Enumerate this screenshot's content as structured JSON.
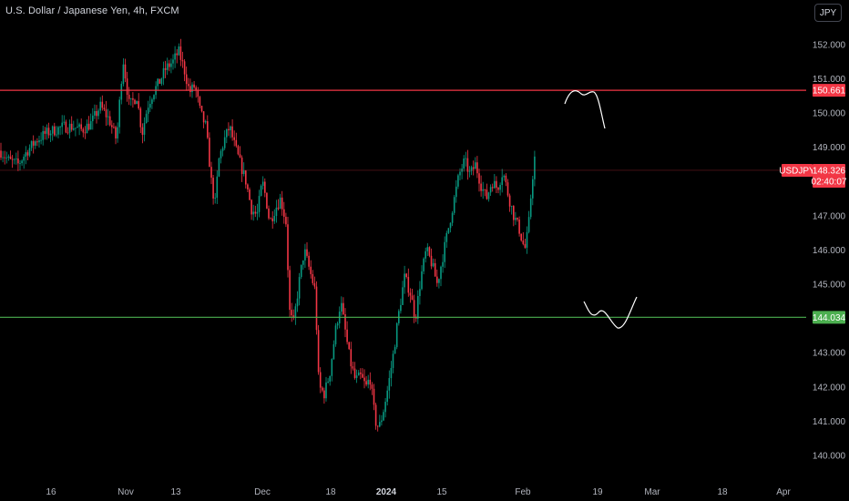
{
  "header": {
    "title": "U.S. Dollar / Japanese Yen, 4h, FXCM",
    "currency_button": "JPY"
  },
  "chart_data": {
    "type": "candlestick",
    "symbol": "USDJPY",
    "interval": "4h",
    "source": "FXCM",
    "ylim": [
      139.8,
      152.5
    ],
    "y_ticks": [
      "140.000",
      "141.000",
      "142.000",
      "143.000",
      "144.000",
      "145.000",
      "146.000",
      "147.000",
      "148.000",
      "149.000",
      "150.000",
      "151.000",
      "152.000"
    ],
    "x_ticks": [
      {
        "label": "16",
        "bold": false
      },
      {
        "label": "Nov",
        "bold": false
      },
      {
        "label": "13",
        "bold": false
      },
      {
        "label": "Dec",
        "bold": false
      },
      {
        "label": "18",
        "bold": false
      },
      {
        "label": "2024",
        "bold": true
      },
      {
        "label": "15",
        "bold": false
      },
      {
        "label": "Feb",
        "bold": false
      },
      {
        "label": "19",
        "bold": false
      },
      {
        "label": "Mar",
        "bold": false
      },
      {
        "label": "18",
        "bold": false
      },
      {
        "label": "Apr",
        "bold": false
      }
    ],
    "price_path": [
      [
        0,
        148.9
      ],
      [
        10,
        148.6
      ],
      [
        20,
        148.5
      ],
      [
        30,
        148.9
      ],
      [
        40,
        149.2
      ],
      [
        50,
        149.4
      ],
      [
        60,
        149.5
      ],
      [
        70,
        149.6
      ],
      [
        80,
        149.6
      ],
      [
        90,
        149.5
      ],
      [
        100,
        149.7
      ],
      [
        110,
        150.2
      ],
      [
        120,
        149.8
      ],
      [
        128,
        149.2
      ],
      [
        135,
        151.6
      ],
      [
        142,
        150.2
      ],
      [
        150,
        150.5
      ],
      [
        156,
        149.4
      ],
      [
        162,
        150.2
      ],
      [
        168,
        150.6
      ],
      [
        175,
        150.9
      ],
      [
        182,
        151.3
      ],
      [
        190,
        151.5
      ],
      [
        196,
        151.8
      ],
      [
        202,
        151.3
      ],
      [
        208,
        150.6
      ],
      [
        214,
        150.8
      ],
      [
        220,
        150.0
      ],
      [
        226,
        149.6
      ],
      [
        232,
        148.0
      ],
      [
        236,
        147.3
      ],
      [
        240,
        148.6
      ],
      [
        246,
        149.2
      ],
      [
        252,
        149.6
      ],
      [
        258,
        149.0
      ],
      [
        264,
        148.5
      ],
      [
        270,
        148.0
      ],
      [
        276,
        147.2
      ],
      [
        282,
        147.0
      ],
      [
        288,
        148.0
      ],
      [
        292,
        147.5
      ],
      [
        296,
        146.8
      ],
      [
        302,
        147.2
      ],
      [
        308,
        147.5
      ],
      [
        314,
        146.8
      ],
      [
        318,
        144.2
      ],
      [
        322,
        143.8
      ],
      [
        328,
        145.0
      ],
      [
        334,
        146.0
      ],
      [
        340,
        145.4
      ],
      [
        346,
        144.8
      ],
      [
        350,
        142.0
      ],
      [
        356,
        141.8
      ],
      [
        362,
        142.4
      ],
      [
        368,
        143.6
      ],
      [
        374,
        144.5
      ],
      [
        378,
        143.8
      ],
      [
        384,
        142.8
      ],
      [
        390,
        142.2
      ],
      [
        396,
        142.3
      ],
      [
        402,
        142.0
      ],
      [
        406,
        142.3
      ],
      [
        412,
        141.0
      ],
      [
        416,
        140.8
      ],
      [
        420,
        141.2
      ],
      [
        426,
        142.0
      ],
      [
        432,
        143.0
      ],
      [
        438,
        144.2
      ],
      [
        444,
        145.2
      ],
      [
        450,
        144.8
      ],
      [
        456,
        144.0
      ],
      [
        462,
        145.2
      ],
      [
        468,
        146.0
      ],
      [
        474,
        145.6
      ],
      [
        480,
        145.0
      ],
      [
        486,
        145.8
      ],
      [
        492,
        146.6
      ],
      [
        498,
        147.4
      ],
      [
        504,
        148.2
      ],
      [
        510,
        148.6
      ],
      [
        516,
        148.2
      ],
      [
        522,
        148.5
      ],
      [
        528,
        147.9
      ],
      [
        534,
        147.5
      ],
      [
        540,
        148.0
      ],
      [
        546,
        147.8
      ],
      [
        552,
        148.3
      ],
      [
        558,
        147.6
      ],
      [
        564,
        147.0
      ],
      [
        570,
        146.6
      ],
      [
        576,
        146.0
      ],
      [
        580,
        146.6
      ],
      [
        584,
        148.0
      ],
      [
        587,
        148.7
      ],
      [
        590,
        148.33
      ]
    ],
    "horizontal_levels": [
      {
        "price": 150.661,
        "label": "150.661",
        "color": "#f23645"
      },
      {
        "price": 144.034,
        "label": "144.034",
        "color": "#4caf50"
      }
    ],
    "current_price": {
      "symbol_label": "USDJPY",
      "price_label": "148.326",
      "countdown": "02:40:07",
      "price": 148.326,
      "color": "#f23645"
    },
    "drawings": [
      {
        "kind": "freehand-projection-down",
        "color": "#ffffff"
      },
      {
        "kind": "freehand-projection-up",
        "color": "#ffffff"
      }
    ],
    "colors": {
      "up": "#089981",
      "down": "#f23645",
      "background": "#000000",
      "axis_text": "#b2b5be"
    }
  }
}
